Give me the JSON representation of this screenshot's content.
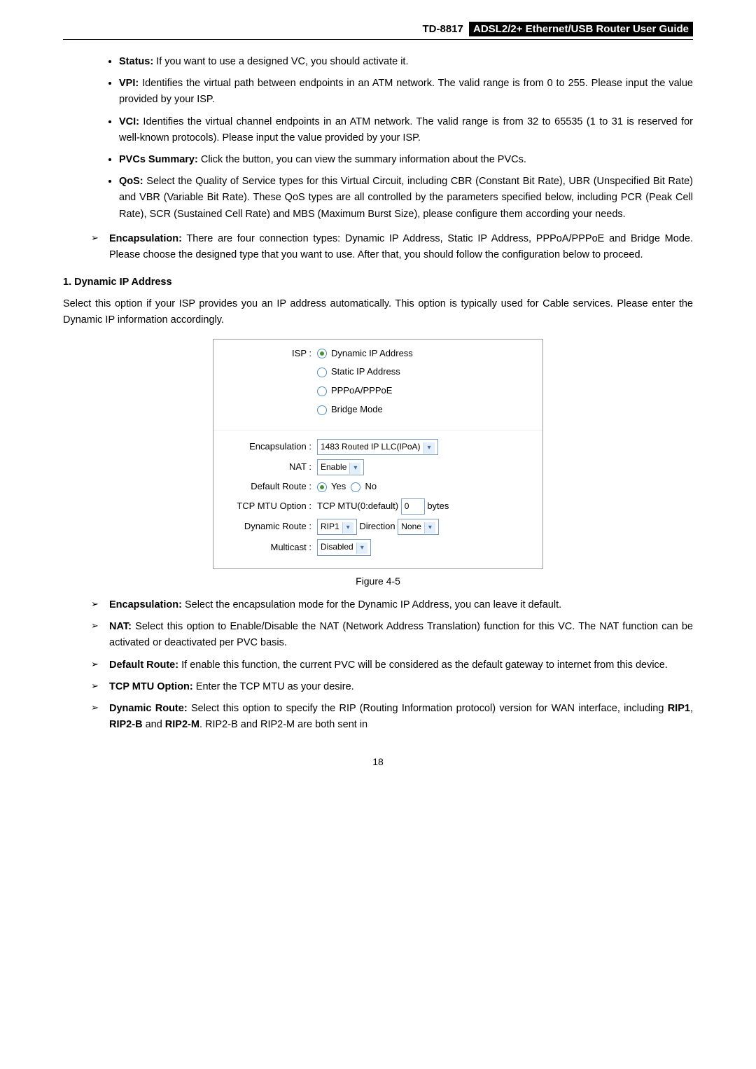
{
  "header": {
    "model": "TD-8817",
    "title": "ADSL2/2+ Ethernet/USB Router User Guide"
  },
  "bullets": {
    "status": {
      "label": "Status:",
      "text": " If you want to use a designed VC, you should activate it."
    },
    "vpi": {
      "label": "VPI:",
      "text": " Identifies the virtual path between endpoints in an ATM network. The valid range is from 0 to 255. Please input the value provided by your ISP."
    },
    "vci": {
      "label": "VCI:",
      "text": " Identifies the virtual channel endpoints in an ATM network. The valid range is from 32 to 65535 (1 to 31 is reserved for well-known protocols). Please input the value provided by your ISP."
    },
    "pvcs": {
      "label": "PVCs Summary:",
      "text": " Click the button, you can view the summary information about the PVCs."
    },
    "qos": {
      "label": "QoS:",
      "text": " Select the Quality of Service types for this Virtual Circuit, including CBR (Constant Bit Rate), UBR (Unspecified Bit Rate) and VBR (Variable Bit Rate). These QoS types are all controlled by the parameters specified below, including PCR (Peak Cell Rate), SCR (Sustained Cell Rate) and MBS (Maximum Burst Size), please configure them according your needs."
    }
  },
  "encap_arrow": {
    "label": "Encapsulation:",
    "text": " There are four connection types: Dynamic IP Address, Static IP Address, PPPoA/PPPoE and Bridge Mode. Please choose the designed type that you want to use. After that, you should follow the configuration below to proceed."
  },
  "section1": {
    "heading": "1.   Dynamic IP Address",
    "para": "Select this option if your ISP provides you an IP address automatically. This option is typically used for Cable services. Please enter the Dynamic IP information accordingly."
  },
  "form": {
    "isp_label": "ISP :",
    "opts": {
      "dynamic": "Dynamic IP Address",
      "static": "Static IP Address",
      "pppoa": "PPPoA/PPPoE",
      "bridge": "Bridge Mode"
    },
    "encap_label": "Encapsulation :",
    "encap_value": "1483 Routed IP LLC(IPoA)",
    "nat_label": "NAT :",
    "nat_value": "Enable",
    "defroute_label": "Default Route :",
    "yes": "Yes",
    "no": "No",
    "tcpmtu_label": "TCP MTU Option :",
    "tcpmtu_text": "TCP MTU(0:default)",
    "tcpmtu_value": "0",
    "bytes": "bytes",
    "dynroute_label": "Dynamic Route :",
    "dynroute_value": "RIP1",
    "direction": "Direction",
    "direction_value": "None",
    "multicast_label": "Multicast :",
    "multicast_value": "Disabled"
  },
  "fig_caption": "Figure 4-5",
  "arrows2": {
    "encap": {
      "label": "Encapsulation:",
      "text": " Select the encapsulation mode for the Dynamic IP Address, you can leave it default."
    },
    "nat": {
      "label": "NAT:",
      "text": " Select this option to Enable/Disable the NAT (Network Address Translation) function for this VC. The NAT function can be activated or deactivated per PVC basis."
    },
    "defroute": {
      "label": "Default Route:",
      "text": " If enable this function, the current PVC will be considered as the default gateway to internet from this device."
    },
    "tcpmtu": {
      "label": "TCP MTU Option:",
      "text": " Enter the TCP MTU as your desire."
    },
    "dynroute": {
      "label": "Dynamic Route:",
      "text_pre": " Select this option to specify the RIP (Routing Information protocol) version for WAN interface, including ",
      "rip1": "RIP1",
      "sep1": ", ",
      "rip2b": "RIP2-B",
      "sep2": " and ",
      "rip2m": "RIP2-M",
      "text_post": ". RIP2-B and RIP2-M are both sent in"
    }
  },
  "page_number": "18"
}
